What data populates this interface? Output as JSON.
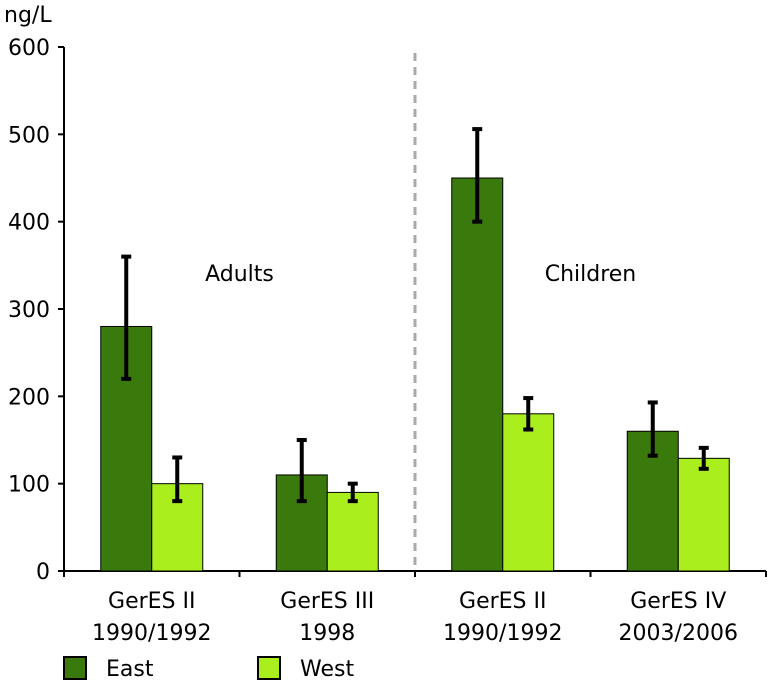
{
  "chart_data": {
    "type": "bar",
    "ylabel": "ng/L",
    "ylim": [
      0,
      600
    ],
    "yticks": [
      0,
      100,
      200,
      300,
      400,
      500,
      600
    ],
    "categories": [
      [
        "GerES II",
        "1990/1992"
      ],
      [
        "GerES III",
        "1998"
      ],
      [
        "GerES II",
        "1990/1992"
      ],
      [
        "GerES IV",
        "2003/2006"
      ]
    ],
    "groups": [
      {
        "label": "Adults",
        "categories": [
          0,
          1
        ]
      },
      {
        "label": "Children",
        "categories": [
          2,
          3
        ]
      }
    ],
    "series": [
      {
        "name": "East",
        "color": "#3a7a0c",
        "values": [
          280,
          110,
          450,
          160
        ],
        "errors_low": [
          220,
          80,
          400,
          132
        ],
        "errors_high": [
          360,
          150,
          506,
          193
        ]
      },
      {
        "name": "West",
        "color": "#aaee1e",
        "values": [
          100,
          90,
          180,
          129
        ],
        "errors_low": [
          80,
          80,
          162,
          117
        ],
        "errors_high": [
          130,
          100,
          198,
          141
        ]
      }
    ],
    "grid": false,
    "legend_position": "bottom"
  }
}
